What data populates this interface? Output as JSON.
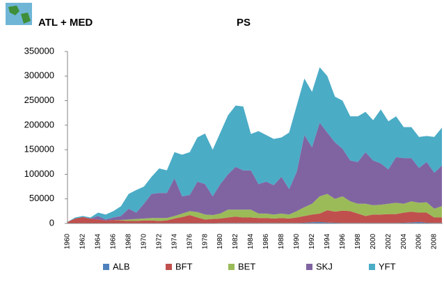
{
  "chart_data": {
    "type": "stacked_area",
    "subtitle": "ATL + MED",
    "title": "PS",
    "categories": [
      1960,
      null,
      1962,
      null,
      1964,
      null,
      1966,
      null,
      1968,
      null,
      1970,
      null,
      1972,
      null,
      1974,
      null,
      1976,
      null,
      1978,
      null,
      1980,
      null,
      1982,
      null,
      1984,
      null,
      1986,
      null,
      1988,
      null,
      1990,
      null,
      1992,
      null,
      1994,
      null,
      1996,
      null,
      1998,
      null,
      2000,
      null,
      2002,
      null,
      2004,
      null,
      2006,
      null,
      2008,
      null
    ],
    "series": [
      {
        "name": "ALB",
        "color": "#4f81bd",
        "values": [
          0,
          0,
          0,
          0,
          0,
          0,
          0,
          0,
          0,
          0,
          500,
          500,
          500,
          500,
          500,
          500,
          500,
          500,
          500,
          500,
          1000,
          1000,
          1000,
          1000,
          1000,
          1000,
          1000,
          1000,
          1000,
          1000,
          1000,
          1500,
          2500,
          3000,
          2000,
          1500,
          1000,
          1000,
          1000,
          1000,
          1000,
          1000,
          1000,
          1000,
          1500,
          2000,
          3000,
          1500,
          1000,
          1000
        ]
      },
      {
        "name": "BFT",
        "color": "#c0504d",
        "values": [
          3000,
          10000,
          13000,
          10000,
          8000,
          6000,
          7000,
          6000,
          5000,
          5000,
          5500,
          5500,
          4500,
          5500,
          9500,
          12500,
          16500,
          11500,
          7500,
          8500,
          9000,
          11000,
          13000,
          11000,
          11000,
          10000,
          10000,
          9000,
          10000,
          9000,
          11000,
          13500,
          15500,
          17000,
          25000,
          22500,
          25000,
          24000,
          19000,
          14000,
          17000,
          17000,
          18000,
          18000,
          20500,
          22000,
          19000,
          20500,
          11000,
          11000
        ]
      },
      {
        "name": "BET",
        "color": "#9bbb59",
        "values": [
          0,
          0,
          0,
          0,
          0,
          0,
          0,
          1000,
          3000,
          4000,
          4000,
          5000,
          6000,
          5000,
          5000,
          7000,
          8000,
          11000,
          10000,
          8000,
          10000,
          16000,
          14000,
          16000,
          16000,
          9000,
          9000,
          8000,
          9000,
          8000,
          13000,
          18000,
          22000,
          35000,
          33000,
          26000,
          29000,
          20000,
          20000,
          25000,
          19000,
          20000,
          21000,
          23000,
          18000,
          21000,
          20000,
          21000,
          18000,
          23000
        ]
      },
      {
        "name": "SKJ",
        "color": "#8064a2",
        "values": [
          0,
          0,
          0,
          0,
          7000,
          2000,
          5000,
          8000,
          22000,
          13000,
          30000,
          49000,
          51000,
          51000,
          77000,
          35000,
          33000,
          62000,
          62000,
          38000,
          60000,
          72000,
          87000,
          80000,
          80000,
          60000,
          65000,
          60000,
          75000,
          52000,
          80000,
          147000,
          115000,
          150000,
          125000,
          115000,
          97000,
          83000,
          85000,
          105000,
          91000,
          84000,
          70000,
          93000,
          93000,
          88000,
          71000,
          82000,
          73000,
          83000
        ]
      },
      {
        "name": "YFT",
        "color": "#4bacc6",
        "values": [
          0,
          2000,
          2000,
          2000,
          7000,
          10000,
          13000,
          20000,
          30000,
          46000,
          35000,
          35000,
          50000,
          46000,
          53000,
          85000,
          87000,
          90000,
          103000,
          95000,
          105000,
          120000,
          125000,
          130000,
          74000,
          108000,
          95000,
          94000,
          80000,
          115000,
          135000,
          115000,
          113000,
          113000,
          115000,
          93000,
          98000,
          90000,
          93000,
          82000,
          82000,
          110000,
          98000,
          83000,
          63000,
          63000,
          63000,
          53000,
          73000,
          77000
        ]
      }
    ],
    "ylim": [
      0,
      350000
    ],
    "yticks": [
      0,
      50000,
      100000,
      150000,
      200000,
      250000,
      300000,
      350000
    ],
    "legend": "bottom"
  }
}
